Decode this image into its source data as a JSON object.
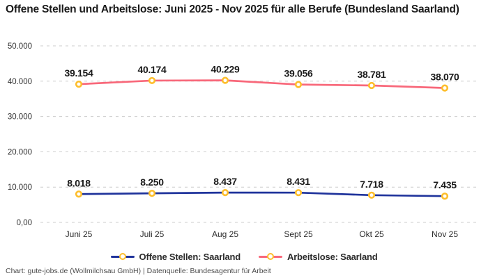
{
  "title": "Offene Stellen und Arbeitslose: Juni 2025 - Nov 2025 für alle Berufe (Bundesland Saarland)",
  "attribution": "Chart: gute-jobs.de (Wollmilchsau GmbH) | Datenquelle: Bundesagentur für Arbeit",
  "colors": {
    "open_positions_line": "#1F339B",
    "unemployed_line": "#F8687A",
    "marker_ring": "#FDBE2C",
    "marker_fill": "#FFFFFF",
    "grid": "#CCCCCC",
    "title_text": "#1A1A1A",
    "axis_text": "#333333",
    "point_label_text": "#1A1A1A",
    "attribution_text": "#4D4D4D"
  },
  "chart_data": {
    "type": "line",
    "title": "Offene Stellen und Arbeitslose: Juni 2025 - Nov 2025 für alle Berufe (Bundesland Saarland)",
    "categories": [
      "Juni 25",
      "Juli 25",
      "Aug 25",
      "Sept 25",
      "Okt 25",
      "Nov 25"
    ],
    "series": [
      {
        "name": "Offene Stellen: Saarland",
        "color": "#1F339B",
        "values": [
          8018,
          8250,
          8437,
          8431,
          7718,
          7435
        ],
        "point_labels": [
          "8.018",
          "8.250",
          "8.437",
          "8.431",
          "7.718",
          "7.435"
        ]
      },
      {
        "name": "Arbeitslose: Saarland",
        "color": "#F8687A",
        "values": [
          39154,
          40174,
          40229,
          39056,
          38781,
          38070
        ],
        "point_labels": [
          "39.154",
          "40.174",
          "40.229",
          "39.056",
          "38.781",
          "38.070"
        ]
      }
    ],
    "ylim": [
      0,
      50000
    ],
    "yticks": [
      {
        "value": 0,
        "label": "0,00"
      },
      {
        "value": 10000,
        "label": "10.000"
      },
      {
        "value": 20000,
        "label": "20.000"
      },
      {
        "value": 30000,
        "label": "30.000"
      },
      {
        "value": 40000,
        "label": "40.000"
      },
      {
        "value": 50000,
        "label": "50.000"
      }
    ],
    "grid": "horizontal-dashed",
    "legend_position": "bottom",
    "marker_style": {
      "fill": "#FFFFFF",
      "stroke": "#FDBE2C"
    }
  }
}
